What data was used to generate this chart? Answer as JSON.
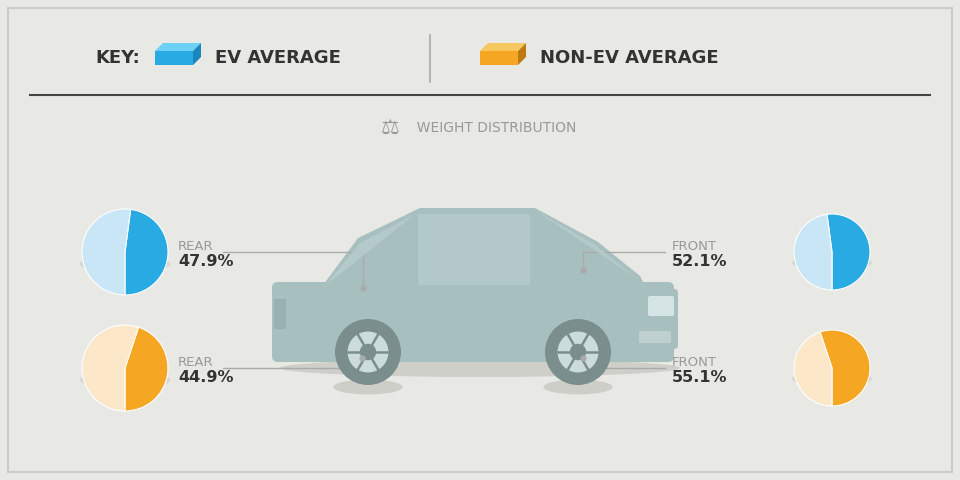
{
  "bg_color": "#e8e8e5",
  "border_color": "#cccccc",
  "title": "  WEIGHT DISTRIBUTION",
  "key_label_ev": "EV AVERAGE",
  "key_label_nonev": "NON-EV AVERAGE",
  "key_label_prefix": "KEY:",
  "ev_color_main": "#29aae2",
  "ev_color_light": "#c8e6f5",
  "nonev_color_main": "#f5a623",
  "nonev_color_light": "#fce8c8",
  "ev_rear_pct": 47.9,
  "ev_front_pct": 52.1,
  "nonev_rear_pct": 44.9,
  "nonev_front_pct": 55.1,
  "car_color": "#a8bfbf",
  "car_color_dark": "#8aa8a8",
  "text_color_label": "#999999",
  "text_color_pct": "#333333",
  "line_color": "#aaaaaa"
}
